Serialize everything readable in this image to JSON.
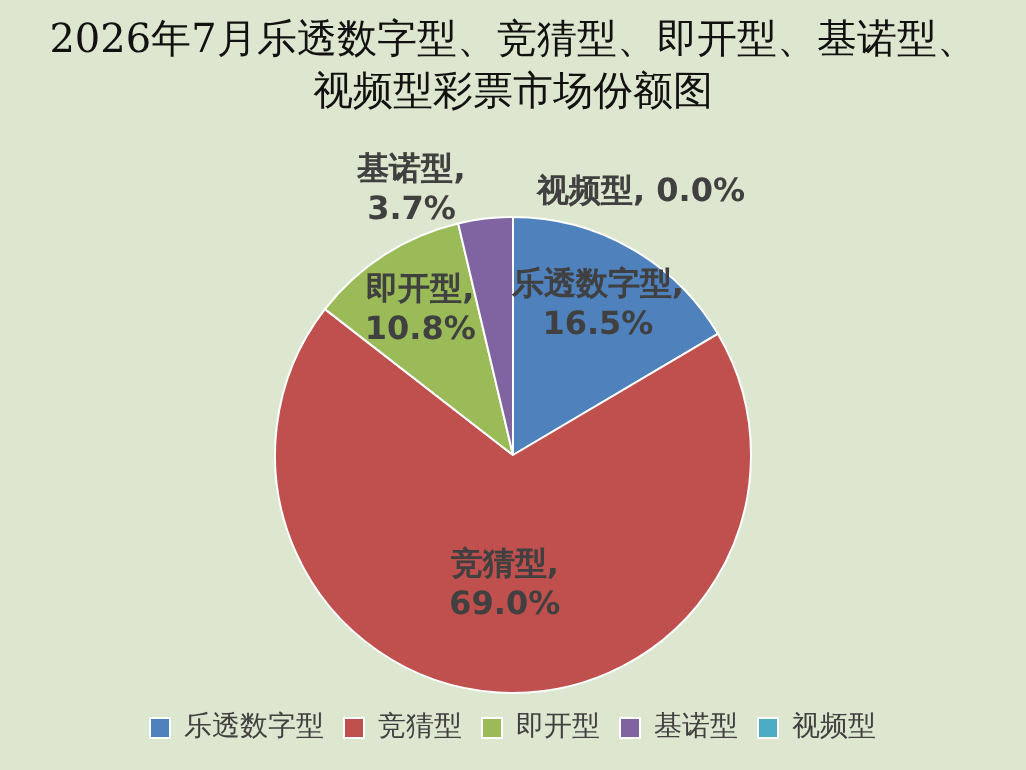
{
  "chart_data": {
    "type": "pie",
    "title": "2026年7月乐透数字型、竞猜型、即开型、基诺型、视频型彩票市场份额图",
    "categories": [
      "乐透数字型",
      "竞猜型",
      "即开型",
      "基诺型",
      "视频型"
    ],
    "values": [
      16.5,
      69.0,
      10.8,
      3.7,
      0.0
    ],
    "value_labels": [
      "乐透数字型,\n16.5%",
      "竞猜型,\n69.0%",
      "即开型,\n10.8%",
      "基诺型,\n3.7%",
      "视频型, 0.0%"
    ],
    "colors": [
      "#4f81bd",
      "#c0504d",
      "#9bbb59",
      "#8064a2",
      "#4bacc6"
    ],
    "legend": "bottom"
  }
}
